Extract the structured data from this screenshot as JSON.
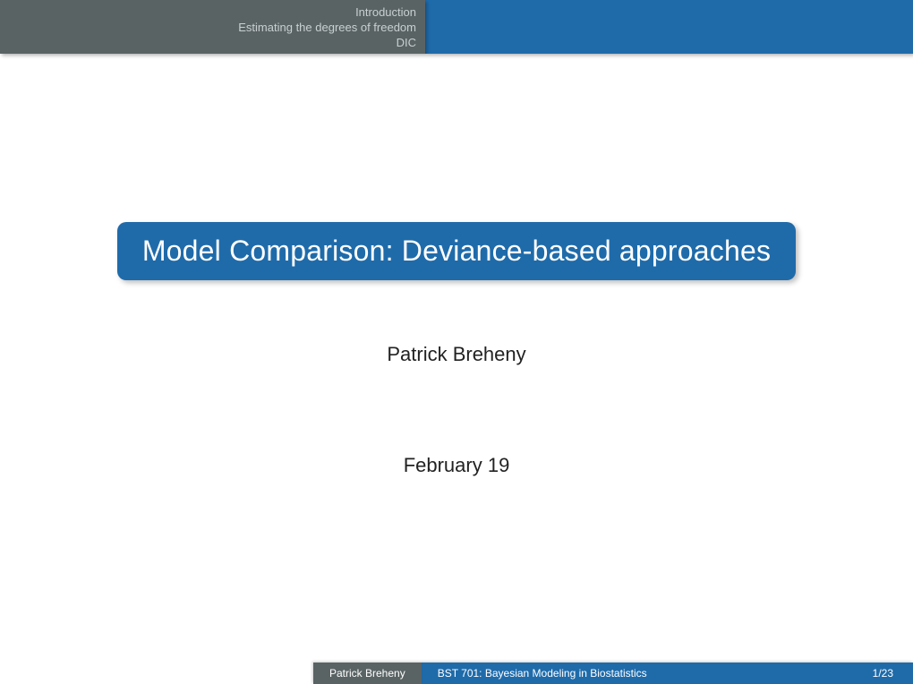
{
  "header": {
    "sections": [
      "Introduction",
      "Estimating the degrees of freedom",
      "DIC"
    ]
  },
  "title": "Model Comparison: Deviance-based approaches",
  "author": "Patrick Breheny",
  "date": "February 19",
  "footer": {
    "author": "Patrick Breheny",
    "course": "BST 701: Bayesian Modeling in Biostatistics",
    "page": "1/23"
  },
  "colors": {
    "primary_blue": "#1f6baa",
    "header_gray": "#5a6364",
    "header_text": "#c8d0d1",
    "body_text": "#222222",
    "background": "#ffffff"
  },
  "typography": {
    "title_fontsize": 32,
    "body_fontsize": 22,
    "header_fontsize": 13,
    "footer_fontsize": 12
  }
}
